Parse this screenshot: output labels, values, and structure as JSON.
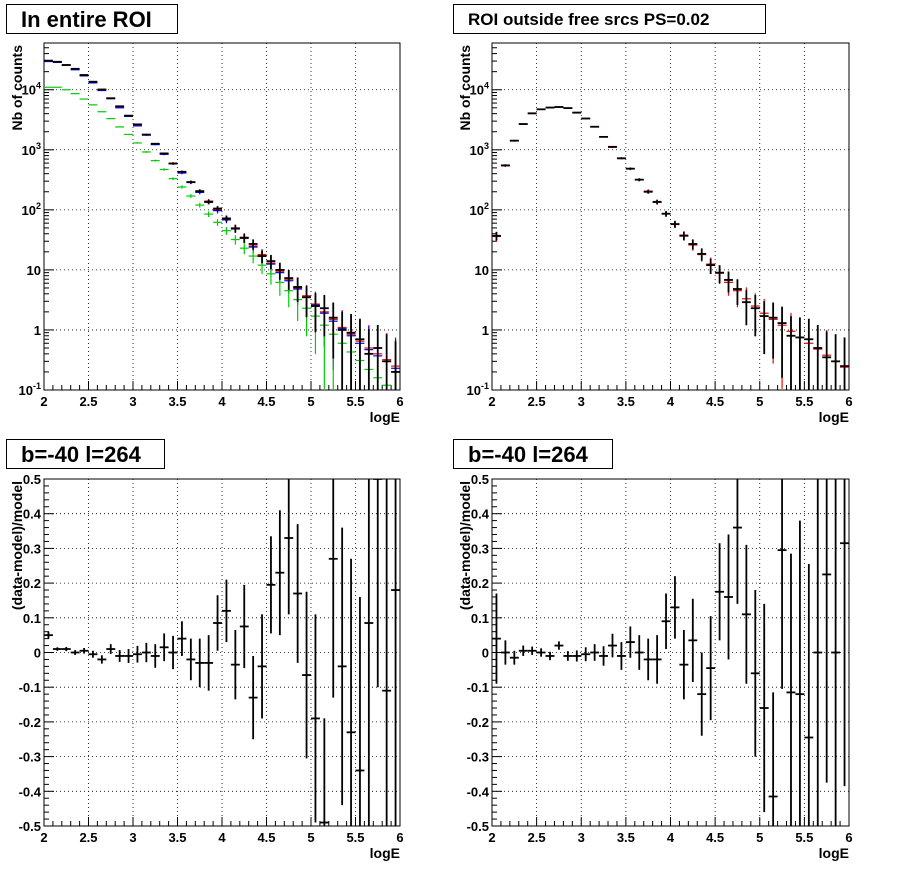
{
  "titles": {
    "top_left": "In entire ROI",
    "top_right": "ROI outside free srcs PS=0.02",
    "bottom_left": "b=-40 l=264",
    "bottom_right": "b=-40 l=264"
  },
  "colors": {
    "data": "#000000",
    "model_red": "#ff0000",
    "model_blue": "#0000ff",
    "model_green": "#00cc00"
  },
  "chart_data": [
    {
      "type": "scatter",
      "title": "In entire ROI",
      "xlabel": "logE",
      "ylabel": "Nb of counts",
      "xlim": [
        2,
        6
      ],
      "ylim": [
        0.1,
        60000
      ],
      "log_y": true,
      "grid": true,
      "x_ticks": [
        "2",
        "2.5",
        "3",
        "3.5",
        "4",
        "4.5",
        "5",
        "5.5",
        "6"
      ],
      "y_ticks": [
        "10^-1",
        "1",
        "10",
        "10^2",
        "10^3",
        "10^4"
      ],
      "x": [
        2.05,
        2.15,
        2.25,
        2.35,
        2.45,
        2.55,
        2.65,
        2.75,
        2.85,
        2.95,
        3.05,
        3.15,
        3.25,
        3.35,
        3.45,
        3.55,
        3.65,
        3.75,
        3.85,
        3.95,
        4.05,
        4.15,
        4.25,
        4.35,
        4.45,
        4.55,
        4.65,
        4.75,
        4.85,
        4.95,
        5.05,
        5.15,
        5.25,
        5.35,
        5.45,
        5.55,
        5.65,
        5.75,
        5.85,
        5.95
      ],
      "series": [
        {
          "color": "#ff0000",
          "values": [
            30000,
            29000,
            26000,
            22000,
            17500,
            13500,
            10000,
            7300,
            5200,
            3700,
            2600,
            1800,
            1250,
            860,
            600,
            420,
            290,
            200,
            140,
            100,
            70,
            50,
            35,
            25,
            18,
            13,
            9.5,
            7,
            5,
            3.7,
            2.7,
            2,
            1.5,
            1.1,
            0.85,
            0.65,
            0.5,
            0.4,
            0.32,
            0.25
          ]
        },
        {
          "color": "#0000ff",
          "values": [
            29500,
            28500,
            25500,
            21500,
            17000,
            13000,
            9700,
            7100,
            5000,
            3600,
            2500,
            1750,
            1220,
            840,
            585,
            410,
            285,
            195,
            137,
            97,
            68,
            48,
            34,
            24,
            17,
            12.5,
            9,
            6.6,
            4.8,
            3.5,
            2.6,
            1.9,
            1.4,
            1.05,
            0.8,
            0.6,
            0.47,
            0.37,
            0.3,
            0.23
          ]
        },
        {
          "color": "#00cc00",
          "values": [
            11000,
            11000,
            10000,
            8600,
            7000,
            5600,
            4300,
            3300,
            2400,
            1800,
            1300,
            920,
            660,
            470,
            330,
            240,
            170,
            120,
            85,
            62,
            45,
            32,
            23,
            17,
            12,
            8.6,
            6.2,
            4.5,
            3.2,
            2.3,
            1.7,
            1.2,
            0.85,
            0.6,
            0.43,
            0.31,
            0.22,
            0.16,
            0.12,
            0.09
          ]
        },
        {
          "color": "#000000",
          "values": [
            30500,
            29200,
            25800,
            22300,
            17600,
            13600,
            10100,
            7200,
            5300,
            3700,
            2650,
            1790,
            1260,
            870,
            590,
            430,
            290,
            205,
            135,
            105,
            72,
            49,
            34,
            27,
            17,
            14,
            10,
            7.3,
            5.2,
            3.5,
            2.5,
            2.3,
            1.6,
            1.0,
            0.9,
            0.7,
            0.4,
            0.5,
            0.3,
            0.2
          ]
        }
      ]
    },
    {
      "type": "scatter",
      "title": "ROI outside free srcs PS=0.02",
      "xlabel": "logE",
      "ylabel": "Nb of counts",
      "xlim": [
        2,
        6
      ],
      "ylim": [
        0.1,
        60000
      ],
      "log_y": true,
      "grid": true,
      "x_ticks": [
        "2",
        "2.5",
        "3",
        "3.5",
        "4",
        "4.5",
        "5",
        "5.5",
        "6"
      ],
      "y_ticks": [
        "10^-1",
        "1",
        "10",
        "10^2",
        "10^3",
        "10^4"
      ],
      "x": [
        2.05,
        2.15,
        2.25,
        2.35,
        2.45,
        2.55,
        2.65,
        2.75,
        2.85,
        2.95,
        3.05,
        3.15,
        3.25,
        3.35,
        3.45,
        3.55,
        3.65,
        3.75,
        3.85,
        3.95,
        4.05,
        4.15,
        4.25,
        4.35,
        4.45,
        4.55,
        4.65,
        4.75,
        4.85,
        4.95,
        5.05,
        5.15,
        5.25,
        5.35,
        5.45,
        5.55,
        5.65,
        5.75,
        5.85,
        5.95
      ],
      "series": [
        {
          "color": "#ff0000",
          "values": [
            36,
            540,
            1400,
            2700,
            4000,
            4700,
            5000,
            5200,
            4900,
            4200,
            3300,
            2400,
            1650,
            1100,
            730,
            480,
            315,
            205,
            133,
            87,
            57,
            38,
            26,
            18,
            12.5,
            8.8,
            6.2,
            4.5,
            3.3,
            2.5,
            1.9,
            1.5,
            1.2,
            0.95,
            0.75,
            0.6,
            0.48,
            0.38,
            0.3,
            0.24
          ]
        },
        {
          "color": "#000000",
          "values": [
            37,
            550,
            1420,
            2680,
            4050,
            4720,
            5050,
            5150,
            4950,
            4150,
            3320,
            2420,
            1640,
            1120,
            720,
            485,
            318,
            200,
            136,
            86,
            58,
            37,
            27,
            18.5,
            12,
            9,
            6.8,
            4.8,
            2.9,
            2.3,
            1.7,
            1.6,
            1.3,
            0.8,
            0.75,
            0.7,
            0.5,
            0.35,
            0.3,
            0.25
          ]
        }
      ]
    },
    {
      "type": "scatter",
      "title": "b=-40 l=264",
      "xlabel": "logE",
      "ylabel": "(data-model)/model",
      "xlim": [
        2,
        6
      ],
      "ylim": [
        -0.5,
        0.5
      ],
      "grid": true,
      "x_ticks": [
        "2",
        "2.5",
        "3",
        "3.5",
        "4",
        "4.5",
        "5",
        "5.5",
        "6"
      ],
      "y_ticks": [
        "-0.5",
        "-0.4",
        "-0.3",
        "-0.2",
        "-0.1",
        "0",
        "0.1",
        "0.2",
        "0.3",
        "0.4",
        "0.5"
      ],
      "x": [
        2.05,
        2.15,
        2.25,
        2.35,
        2.45,
        2.55,
        2.65,
        2.75,
        2.85,
        2.95,
        3.05,
        3.15,
        3.25,
        3.35,
        3.45,
        3.55,
        3.65,
        3.75,
        3.85,
        3.95,
        4.05,
        4.15,
        4.25,
        4.35,
        4.45,
        4.55,
        4.65,
        4.75,
        4.85,
        4.95,
        5.05,
        5.15,
        5.25,
        5.35,
        5.45,
        5.55,
        5.65,
        5.75,
        5.85,
        5.95
      ],
      "series": [
        {
          "color": "#000000",
          "values": [
            0.05,
            0.01,
            0.01,
            0.0,
            0.005,
            -0.005,
            -0.02,
            0.01,
            -0.01,
            -0.01,
            -0.005,
            0.0,
            -0.01,
            0.015,
            0.0,
            0.04,
            -0.02,
            -0.03,
            -0.03,
            0.085,
            0.12,
            -0.035,
            0.075,
            -0.13,
            -0.04,
            0.195,
            0.23,
            0.33,
            0.17,
            -0.065,
            -0.19,
            -0.49,
            0.27,
            -0.04,
            -0.23,
            -0.34,
            0.085,
            0.5,
            -0.11,
            0.18
          ],
          "errors": [
            0.01,
            0.005,
            0.006,
            0.007,
            0.008,
            0.01,
            0.012,
            0.014,
            0.017,
            0.02,
            0.024,
            0.028,
            0.034,
            0.04,
            0.048,
            0.05,
            0.06,
            0.07,
            0.08,
            0.08,
            0.09,
            0.1,
            0.12,
            0.12,
            0.15,
            0.14,
            0.18,
            0.22,
            0.2,
            0.24,
            0.3,
            0.3,
            0.4,
            0.4,
            0.5,
            0.5,
            0.6,
            0.6,
            0.7,
            0.7
          ]
        }
      ]
    },
    {
      "type": "scatter",
      "title": "b=-40 l=264",
      "xlabel": "logE",
      "ylabel": "(data-model)/model",
      "xlim": [
        2,
        6
      ],
      "ylim": [
        -0.5,
        0.5
      ],
      "grid": true,
      "x_ticks": [
        "2",
        "2.5",
        "3",
        "3.5",
        "4",
        "4.5",
        "5",
        "5.5",
        "6"
      ],
      "y_ticks": [
        "-0.5",
        "-0.4",
        "-0.3",
        "-0.2",
        "-0.1",
        "0",
        "0.1",
        "0.2",
        "0.3",
        "0.4",
        "0.5"
      ],
      "x": [
        2.05,
        2.15,
        2.25,
        2.35,
        2.45,
        2.55,
        2.65,
        2.75,
        2.85,
        2.95,
        3.05,
        3.15,
        3.25,
        3.35,
        3.45,
        3.55,
        3.65,
        3.75,
        3.85,
        3.95,
        4.05,
        4.15,
        4.25,
        4.35,
        4.45,
        4.55,
        4.65,
        4.75,
        4.85,
        4.95,
        5.05,
        5.15,
        5.25,
        5.35,
        5.45,
        5.55,
        5.65,
        5.75,
        5.85,
        5.95
      ],
      "series": [
        {
          "color": "#000000",
          "values": [
            0.04,
            0.0,
            -0.015,
            0.005,
            0.005,
            0.0,
            -0.01,
            0.02,
            -0.01,
            -0.01,
            -0.005,
            0.0,
            -0.01,
            0.02,
            -0.01,
            0.03,
            0.0,
            -0.02,
            -0.02,
            0.09,
            0.13,
            -0.035,
            0.035,
            -0.12,
            -0.045,
            0.175,
            0.16,
            0.36,
            0.11,
            -0.06,
            -0.16,
            -0.415,
            0.295,
            -0.115,
            -0.12,
            -0.245,
            0.0,
            0.225,
            0.0,
            0.315
          ],
          "errors": [
            0.13,
            0.035,
            0.02,
            0.015,
            0.012,
            0.012,
            0.012,
            0.012,
            0.014,
            0.016,
            0.02,
            0.024,
            0.028,
            0.034,
            0.04,
            0.045,
            0.05,
            0.06,
            0.07,
            0.08,
            0.09,
            0.1,
            0.12,
            0.12,
            0.15,
            0.14,
            0.18,
            0.22,
            0.2,
            0.24,
            0.3,
            0.3,
            0.4,
            0.4,
            0.5,
            0.5,
            0.6,
            0.6,
            0.7,
            0.7
          ]
        }
      ]
    }
  ]
}
